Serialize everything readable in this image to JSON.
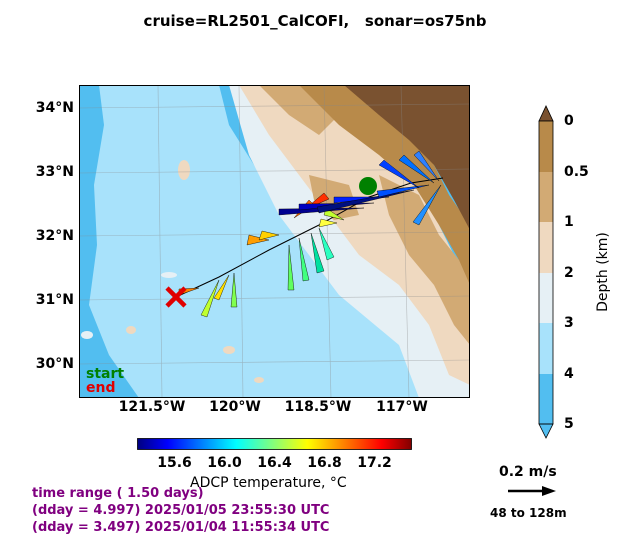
{
  "title": "cruise=RL2501_CalCOFI,   sonar=os75nb",
  "map": {
    "lat_labels": [
      "34°N",
      "33°N",
      "32°N",
      "31°N",
      "30°N"
    ],
    "lon_labels": [
      "121.5°W",
      "120°W",
      "118.5°W",
      "117°W"
    ],
    "legend": {
      "start": "start",
      "end": "end"
    },
    "start_color": "#008000",
    "end_color": "#e00000",
    "land_color": "#7a5230"
  },
  "depth_colorbar": {
    "label": "Depth (km)",
    "ticks": [
      "0",
      "0.5",
      "1",
      "2",
      "3",
      "4",
      "5"
    ],
    "colors": [
      "#b88a4a",
      "#d2aa74",
      "#efd9c0",
      "#e6f0f5",
      "#a8e2fb",
      "#52bef0"
    ]
  },
  "temperature_colorbar": {
    "label": "ADCP temperature, °C",
    "ticks": [
      "15.6",
      "16.0",
      "16.4",
      "16.8",
      "17.2"
    ],
    "range": [
      15.3,
      17.5
    ]
  },
  "info": {
    "range": "time range ( 1.50 days)",
    "end": "(dday = 4.997) 2025/01/05 23:55:30 UTC",
    "start": "(dday = 3.497) 2025/01/04 11:55:34 UTC"
  },
  "scale": {
    "label": "0.2 m/s",
    "depth_range": "48 to 128m"
  }
}
